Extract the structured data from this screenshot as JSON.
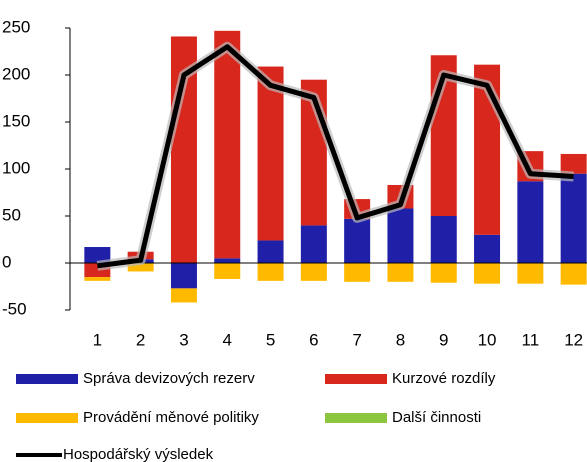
{
  "chart_data": {
    "type": "bar",
    "categories": [
      "1",
      "2",
      "3",
      "4",
      "5",
      "6",
      "7",
      "8",
      "9",
      "10",
      "11",
      "12"
    ],
    "series": [
      {
        "name": "Správa devizových rezerv",
        "color": "#1f1fa8",
        "values": [
          17,
          4,
          -27,
          5,
          24,
          40,
          47,
          58,
          50,
          30,
          87,
          95
        ]
      },
      {
        "name": "Kurzové rozdíly",
        "color": "#d8281e",
        "values": [
          -15,
          8,
          241,
          242,
          185,
          155,
          21,
          25,
          171,
          181,
          32,
          21
        ]
      },
      {
        "name": "Provádění měnové politiky",
        "color": "#ffba00",
        "values": [
          -4,
          -9,
          -15,
          -17,
          -19,
          -19,
          -20,
          -20,
          -21,
          -22,
          -22,
          -23
        ]
      },
      {
        "name": "Další činnosti",
        "color": "#8cc63e",
        "values": [
          0,
          0,
          0,
          0,
          0,
          0,
          0,
          0,
          0,
          0,
          0,
          0
        ]
      },
      {
        "name": "Hospodářský výsledek",
        "color": "#000000",
        "type": "line",
        "values": [
          -3,
          3,
          200,
          230,
          189,
          176,
          48,
          62,
          200,
          189,
          95,
          92
        ]
      }
    ],
    "ylim": [
      -50,
      250
    ],
    "yticks": [
      -50,
      0,
      50,
      100,
      150,
      200,
      250
    ]
  }
}
